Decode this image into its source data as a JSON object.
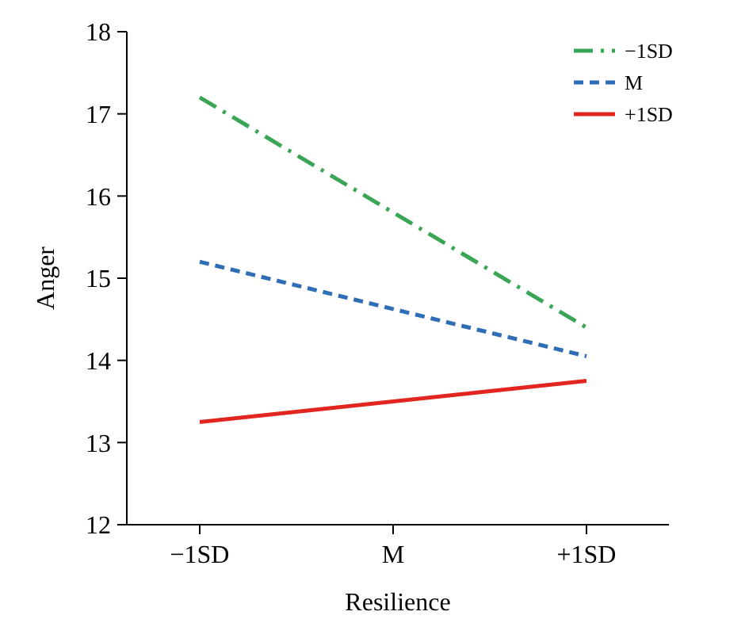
{
  "chart_data": {
    "type": "line",
    "xlabel": "Resilience",
    "ylabel": "Anger",
    "categories": [
      "−1SD",
      "M",
      "+1SD"
    ],
    "ylim": [
      12,
      18
    ],
    "yticks": [
      12,
      13,
      14,
      15,
      16,
      17,
      18
    ],
    "grid": false,
    "legend": "top right",
    "marker": "none",
    "series": [
      {
        "name": "−1SD",
        "color": "#3aa655",
        "x": [
          "−1SD",
          "+1SD"
        ],
        "values": [
          17.2,
          14.4
        ],
        "line_style": "dashdot"
      },
      {
        "name": "M",
        "color": "#2f6db5",
        "x": [
          "−1SD",
          "+1SD"
        ],
        "values": [
          15.2,
          14.05
        ],
        "line_style": "dashed"
      },
      {
        "name": "+1SD",
        "color": "#e0261f",
        "x": [
          "−1SD",
          "+1SD"
        ],
        "values": [
          13.25,
          13.75
        ],
        "line_style": "solid"
      }
    ]
  }
}
